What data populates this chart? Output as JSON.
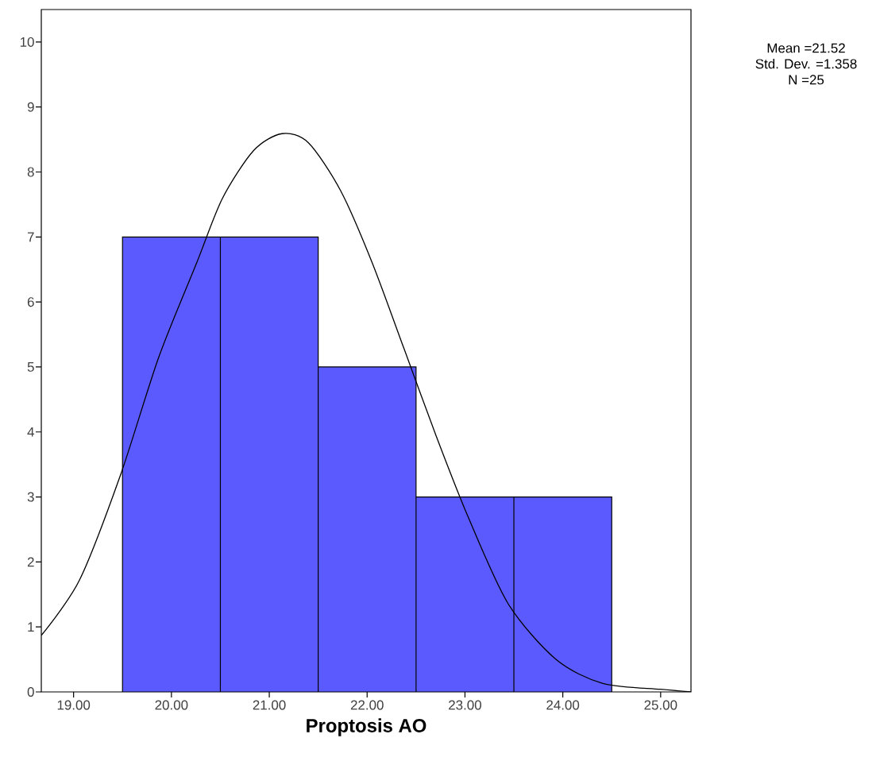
{
  "chart_data": {
    "type": "histogram",
    "xlabel": "Proptosis AO",
    "series": [
      {
        "bins": [
          19.5,
          20.5,
          21.5,
          22.5,
          23.5,
          24.5
        ],
        "values": [
          7,
          7,
          5,
          3,
          3
        ],
        "color": "#5a5aff"
      },
      {
        "type": "line",
        "color": "#000000",
        "x": [
          18.67,
          19.06,
          19.48,
          19.87,
          20.26,
          20.52,
          20.84,
          21.13,
          21.4,
          21.73,
          22.05,
          22.38,
          22.71,
          23.03,
          23.44,
          23.93,
          24.41,
          25.0,
          25.31
        ],
        "values": [
          0.87,
          1.72,
          3.34,
          5.15,
          6.61,
          7.59,
          8.33,
          8.59,
          8.45,
          7.71,
          6.61,
          5.27,
          3.92,
          2.7,
          1.36,
          0.5,
          0.13,
          0.04,
          0.0
        ]
      }
    ],
    "xlim": [
      18.67,
      25.31
    ],
    "ylim": [
      0,
      10.5
    ],
    "xticks": [
      {
        "value": 19,
        "label": "19.00"
      },
      {
        "value": 20,
        "label": "20.00"
      },
      {
        "value": 21,
        "label": "21.00"
      },
      {
        "value": 22,
        "label": "22.00"
      },
      {
        "value": 23,
        "label": "23.00"
      },
      {
        "value": 24,
        "label": "24.00"
      },
      {
        "value": 25,
        "label": "25.00"
      }
    ],
    "yticks": [
      0,
      1,
      2,
      3,
      4,
      5,
      6,
      7,
      8,
      9,
      10
    ],
    "annotations": [
      "Mean =21.52",
      "Std. Dev. =1.358",
      "N =25"
    ],
    "grid": false
  }
}
